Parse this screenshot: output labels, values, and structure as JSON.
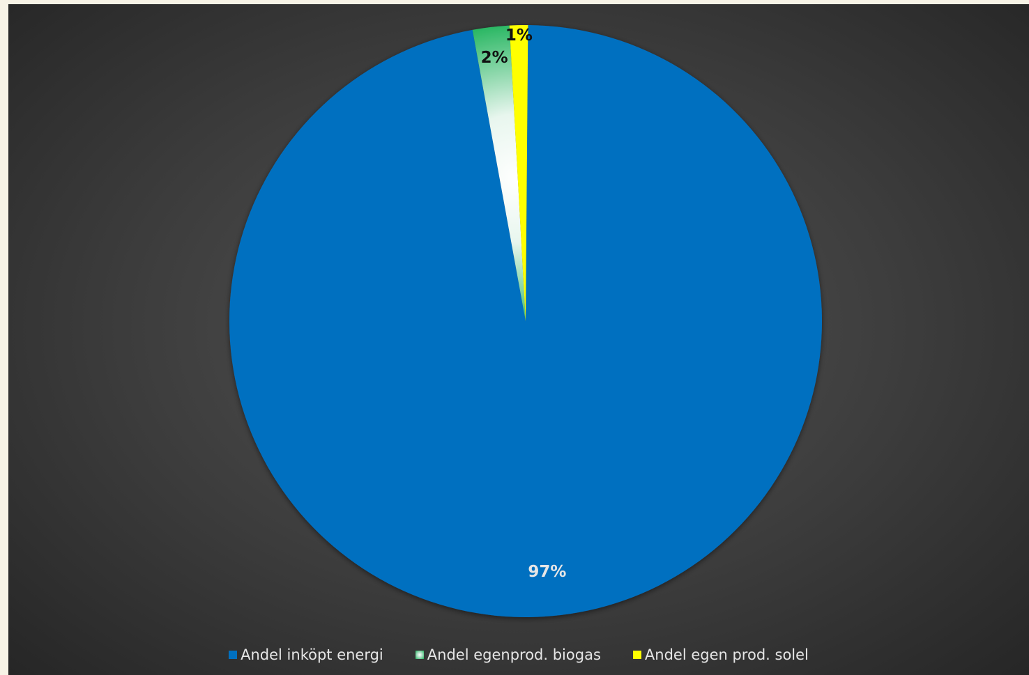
{
  "chart_data": {
    "type": "pie",
    "title": "",
    "slices": [
      {
        "label": "Andel inköpt energi",
        "value": 97,
        "data_label": "97%",
        "color": "#0070c0",
        "label_color": "#e6e6e6"
      },
      {
        "label": "Andel egenprod. biogas",
        "value": 2,
        "data_label": "2%",
        "color": "#1db35a",
        "gradient": true,
        "label_color": "#111111"
      },
      {
        "label": "Andel egen prod. solel",
        "value": 1,
        "data_label": "1%",
        "color": "#ffff00",
        "label_color": "#111111"
      }
    ],
    "legend_position": "bottom"
  },
  "colors": {
    "background_center": "#555555",
    "background_edge": "#262626",
    "legend_text": "#e6e6e6"
  }
}
